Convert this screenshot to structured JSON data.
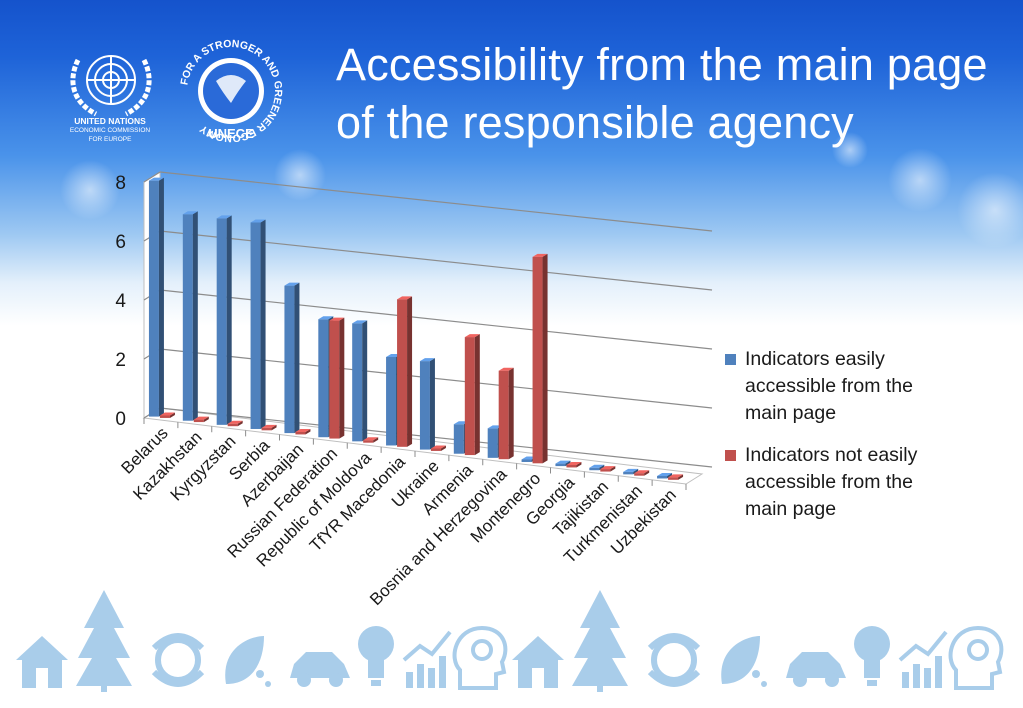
{
  "slide": {
    "title": "Accessibility from the main page of the responsible agency",
    "un_logo": {
      "line1": "UNITED NATIONS",
      "line2": "ECONOMIC COMMISSION",
      "line3": "FOR EUROPE"
    },
    "green_logo": {
      "ring_text": "FOR A STRONGER AND GREENER ECONOMY",
      "brand": "UNECE"
    },
    "colors": {
      "sky_top": "#1e63d8",
      "sky_mid": "#6fb0f0",
      "icon_blue": "#a9cdea"
    },
    "footer_icons": [
      "house-icon",
      "tree-icon",
      "globe-icon",
      "leaf-drops-icon",
      "car-icon",
      "lightbulb-icon",
      "growth-chart-icon",
      "head-gear-icon"
    ]
  },
  "chart_data": {
    "type": "bar",
    "style": "3d-clustered-column",
    "ylim": [
      0,
      8
    ],
    "yticks": [
      "0",
      "2",
      "4",
      "6",
      "8"
    ],
    "grid": true,
    "legend_position": "right",
    "categories": [
      "Belarus",
      "Kazakhstan",
      "Kyrgyzstan",
      "Serbia",
      "Azerbaijan",
      "Russian Federation",
      "Republic of Moldova",
      "TfYR Macedonia",
      "Ukraine",
      "Armenia",
      "Bosnia and Herzegovina",
      "Montenegro",
      "Georgia",
      "Tajikistan",
      "Turkmenistan",
      "Uzbekistan"
    ],
    "series": [
      {
        "name": "Indicators easily accessible from the main page",
        "color": "#4f81bd",
        "values": [
          8,
          7,
          7,
          7,
          5,
          4,
          4,
          3,
          3,
          1,
          1,
          0,
          0,
          0,
          0,
          0
        ]
      },
      {
        "name": "Indicators not easily accessible from the main page",
        "color": "#c0504d",
        "values": [
          0,
          0,
          0,
          0,
          0,
          4,
          0,
          5,
          0,
          4,
          3,
          7,
          0,
          0,
          0,
          0
        ]
      }
    ],
    "legend": [
      {
        "lines": [
          "Indicators easily",
          "accessible from the",
          "main page"
        ],
        "color": "#4f81bd"
      },
      {
        "lines": [
          "Indicators not easily",
          "accessible from the",
          "main page"
        ],
        "color": "#c0504d"
      }
    ]
  }
}
